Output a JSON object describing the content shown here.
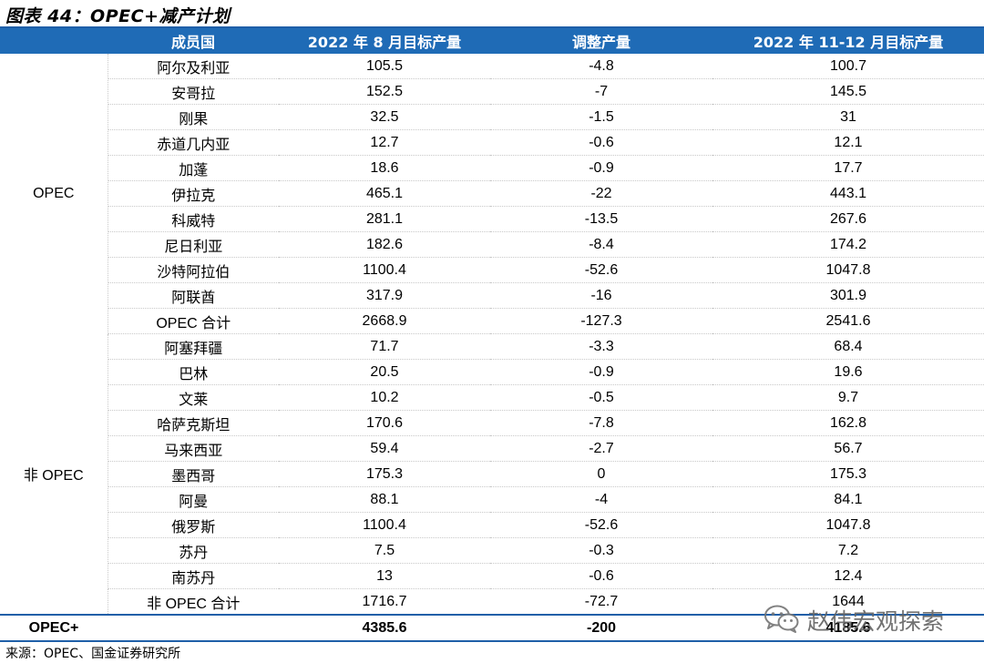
{
  "title": "图表 44：OPEC+减产计划",
  "table": {
    "headers": [
      "",
      "成员国",
      "2022 年 8 月目标产量",
      "调整产量",
      "2022 年 11-12 月目标产量"
    ],
    "opec_group_label": "OPEC",
    "opec_rows": [
      {
        "country": "阿尔及利亚",
        "aug": "105.5",
        "adj": "-4.8",
        "nov_dec": "100.7"
      },
      {
        "country": "安哥拉",
        "aug": "152.5",
        "adj": "-7",
        "nov_dec": "145.5"
      },
      {
        "country": "刚果",
        "aug": "32.5",
        "adj": "-1.5",
        "nov_dec": "31"
      },
      {
        "country": "赤道几内亚",
        "aug": "12.7",
        "adj": "-0.6",
        "nov_dec": "12.1"
      },
      {
        "country": "加蓬",
        "aug": "18.6",
        "adj": "-0.9",
        "nov_dec": "17.7"
      },
      {
        "country": "伊拉克",
        "aug": "465.1",
        "adj": "-22",
        "nov_dec": "443.1"
      },
      {
        "country": "科威特",
        "aug": "281.1",
        "adj": "-13.5",
        "nov_dec": "267.6"
      },
      {
        "country": "尼日利亚",
        "aug": "182.6",
        "adj": "-8.4",
        "nov_dec": "174.2"
      },
      {
        "country": "沙特阿拉伯",
        "aug": "1100.4",
        "adj": "-52.6",
        "nov_dec": "1047.8"
      },
      {
        "country": "阿联酋",
        "aug": "317.9",
        "adj": "-16",
        "nov_dec": "301.9"
      },
      {
        "country": "OPEC 合计",
        "aug": "2668.9",
        "adj": "-127.3",
        "nov_dec": "2541.6"
      }
    ],
    "non_opec_group_label": "非 OPEC",
    "non_opec_rows": [
      {
        "country": "阿塞拜疆",
        "aug": "71.7",
        "adj": "-3.3",
        "nov_dec": "68.4"
      },
      {
        "country": "巴林",
        "aug": "20.5",
        "adj": "-0.9",
        "nov_dec": "19.6"
      },
      {
        "country": "文莱",
        "aug": "10.2",
        "adj": "-0.5",
        "nov_dec": "9.7"
      },
      {
        "country": "哈萨克斯坦",
        "aug": "170.6",
        "adj": "-7.8",
        "nov_dec": "162.8"
      },
      {
        "country": "马来西亚",
        "aug": "59.4",
        "adj": "-2.7",
        "nov_dec": "56.7"
      },
      {
        "country": "墨西哥",
        "aug": "175.3",
        "adj": "0",
        "nov_dec": "175.3"
      },
      {
        "country": "阿曼",
        "aug": "88.1",
        "adj": "-4",
        "nov_dec": "84.1"
      },
      {
        "country": "俄罗斯",
        "aug": "1100.4",
        "adj": "-52.6",
        "nov_dec": "1047.8"
      },
      {
        "country": "苏丹",
        "aug": "7.5",
        "adj": "-0.3",
        "nov_dec": "7.2"
      },
      {
        "country": "南苏丹",
        "aug": "13",
        "adj": "-0.6",
        "nov_dec": "12.4"
      },
      {
        "country": "非 OPEC 合计",
        "aug": "1716.7",
        "adj": "-72.7",
        "nov_dec": "1644"
      }
    ],
    "total_row": {
      "label": "OPEC+",
      "aug": "4385.6",
      "adj": "-200",
      "nov_dec": "4185.6"
    }
  },
  "source": "来源：OPEC、国金证券研究所",
  "watermark": {
    "text": "赵伟宏观探索",
    "icon": "wechat-icon"
  }
}
